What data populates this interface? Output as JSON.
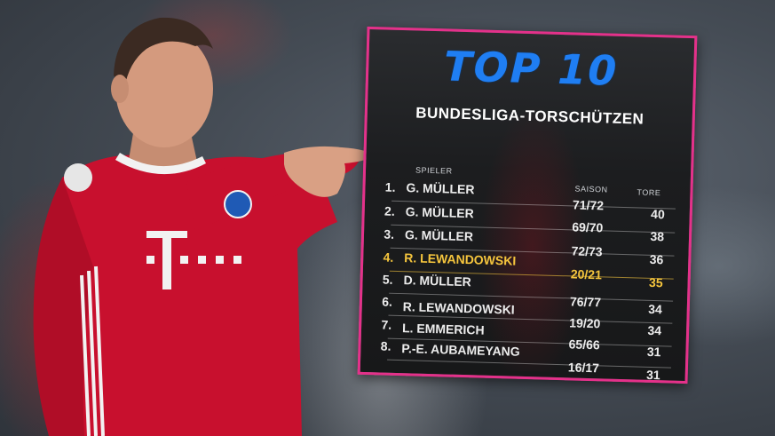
{
  "card": {
    "heading": "TOP 10",
    "subtitle": "BUNDESLIGA-TORSCHÜTZEN",
    "columns": {
      "player": "SPIELER",
      "season": "SAISON",
      "goals": "TORE"
    },
    "rows": [
      {
        "rank": "1.",
        "name": "G. MÜLLER",
        "season": "71/72",
        "goals": "40"
      },
      {
        "rank": "2.",
        "name": "G. MÜLLER",
        "season": "69/70",
        "goals": "38"
      },
      {
        "rank": "3.",
        "name": "G. MÜLLER",
        "season": "72/73",
        "goals": "36"
      },
      {
        "rank": "4.",
        "name": "R. LEWANDOWSKI",
        "season": "20/21",
        "goals": "35"
      },
      {
        "rank": "5.",
        "name": "D. MÜLLER",
        "season": "",
        "goals": ""
      },
      {
        "rank": "6.",
        "name": "R. LEWANDOWSKI",
        "season": "76/77",
        "goals": "34"
      },
      {
        "rank": "7.",
        "name": "L. EMMERICH",
        "season": "19/20",
        "goals": "34"
      },
      {
        "rank": "8.",
        "name": "P.-E. AUBAMEYANG",
        "season": "65/66",
        "goals": "31"
      },
      {
        "rank": "",
        "name": "",
        "season": "16/17",
        "goals": "31"
      }
    ],
    "highlight_color": "#f5c53d",
    "heading_color": "#1f7ef3",
    "border_color": "#e4318a"
  },
  "photo": {
    "jersey_color": "#c8102e",
    "sponsor_mark": "T · · ·"
  }
}
